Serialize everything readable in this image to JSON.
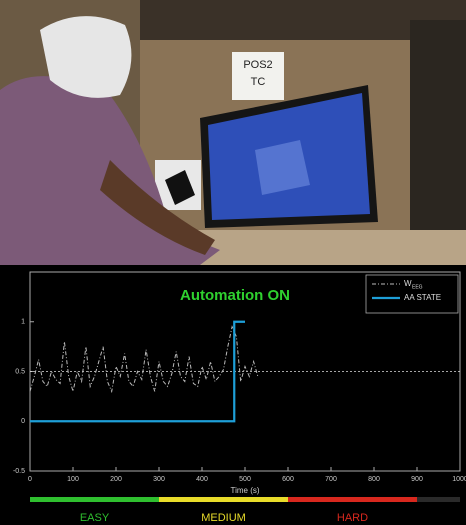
{
  "photo": {
    "sign_lines": [
      "POS2",
      "TC"
    ]
  },
  "chart_data": {
    "type": "line",
    "title": "Automation ON",
    "xlabel": "Time (s)",
    "xlim": [
      0,
      1000
    ],
    "xticks": [
      0,
      100,
      200,
      300,
      400,
      500,
      600,
      700,
      800,
      900,
      1000
    ],
    "ylim": [
      -0.5,
      1.5
    ],
    "yticks": [
      -0.5,
      0,
      0.5,
      1
    ],
    "reference_line": 0.5,
    "series": [
      {
        "name": "W",
        "subscript": "EEG",
        "color": "#bbbbbb",
        "style": "dashdot",
        "x": [
          0,
          10,
          20,
          30,
          40,
          50,
          60,
          70,
          80,
          90,
          100,
          110,
          120,
          130,
          140,
          150,
          160,
          170,
          180,
          190,
          200,
          210,
          220,
          230,
          240,
          250,
          260,
          270,
          280,
          290,
          300,
          310,
          320,
          330,
          340,
          350,
          360,
          370,
          380,
          390,
          400,
          410,
          420,
          430,
          440,
          450,
          460,
          470,
          480,
          490,
          500,
          510,
          520,
          530
        ],
        "values": [
          0.3,
          0.45,
          0.62,
          0.4,
          0.35,
          0.5,
          0.42,
          0.38,
          0.8,
          0.45,
          0.3,
          0.5,
          0.4,
          0.75,
          0.35,
          0.45,
          0.6,
          0.75,
          0.4,
          0.3,
          0.55,
          0.45,
          0.68,
          0.4,
          0.35,
          0.5,
          0.42,
          0.72,
          0.45,
          0.3,
          0.6,
          0.4,
          0.35,
          0.48,
          0.7,
          0.45,
          0.4,
          0.65,
          0.38,
          0.35,
          0.55,
          0.42,
          0.6,
          0.4,
          0.45,
          0.52,
          0.75,
          0.95,
          0.85,
          0.4,
          0.55,
          0.45,
          0.6,
          0.45
        ]
      },
      {
        "name": "AA STATE",
        "color": "#1e9fd8",
        "style": "solid",
        "x": [
          0,
          475,
          475,
          500
        ],
        "values": [
          0,
          0,
          1,
          1
        ]
      }
    ],
    "difficulty_bands": [
      {
        "label": "EASY",
        "start": 0,
        "end": 300,
        "color": "#2fbf2f"
      },
      {
        "label": "MEDIUM",
        "start": 300,
        "end": 600,
        "color": "#e8dc2a"
      },
      {
        "label": "HARD",
        "start": 600,
        "end": 900,
        "color": "#d8281e"
      },
      {
        "start": 900,
        "end": 1000,
        "color": "#2a2a2a"
      }
    ]
  }
}
